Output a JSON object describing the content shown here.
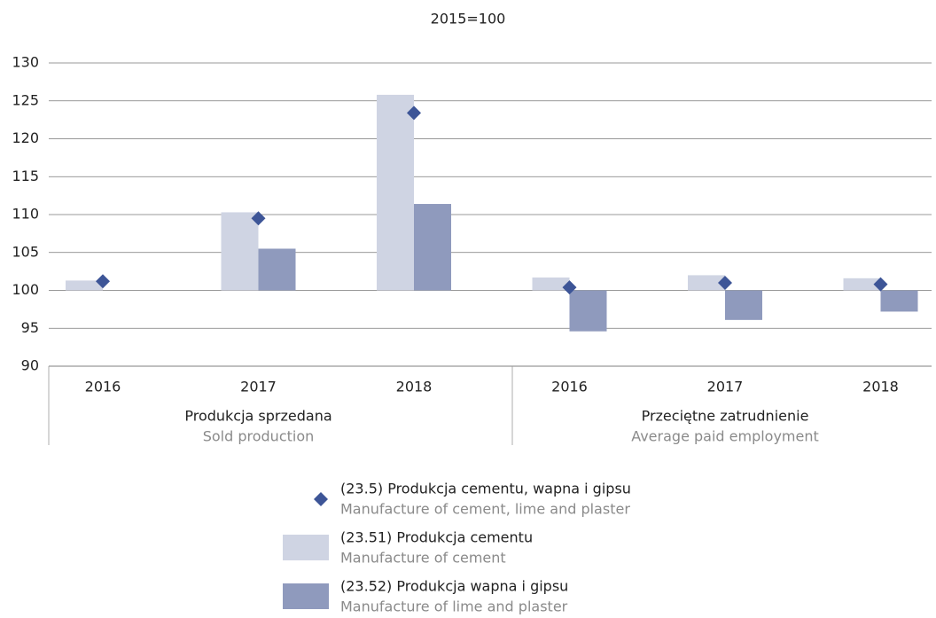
{
  "chart_data": {
    "type": "bar",
    "title": "2015=100",
    "categories": [
      "2016",
      "2017",
      "2018",
      "2016",
      "2017",
      "2018"
    ],
    "groups": [
      {
        "label": "Produkcja sprzedana",
        "sublabel": "Sold production"
      },
      {
        "label": "Przeciętne zatrudnienie",
        "sublabel": "Average paid employment"
      }
    ],
    "baseline": 100,
    "series": [
      {
        "name": "(23.5) Produkcja cementu, wapna i gipsu",
        "subname": "Manufacture of cement, lime and plaster",
        "kind": "diamond",
        "color": "#3d5597",
        "values": [
          101.2,
          109.5,
          123.4,
          100.4,
          101.0,
          100.8
        ]
      },
      {
        "name": "(23.51) Produkcja cementu",
        "subname": "Manufacture of cement",
        "kind": "bar",
        "color": "#cfd4e3",
        "values": [
          101.3,
          110.3,
          125.8,
          101.7,
          102.0,
          101.6
        ]
      },
      {
        "name": "(23.52) Produkcja wapna i gipsu",
        "subname": "Manufacture of lime and plaster",
        "kind": "bar",
        "color": "#8f9abd",
        "values": [
          100,
          105.5,
          111.4,
          94.6,
          96.1,
          97.2
        ]
      }
    ],
    "ylim": [
      90,
      130
    ],
    "yticks": [
      90,
      95,
      100,
      105,
      110,
      115,
      120,
      125,
      130
    ],
    "grid": true
  }
}
